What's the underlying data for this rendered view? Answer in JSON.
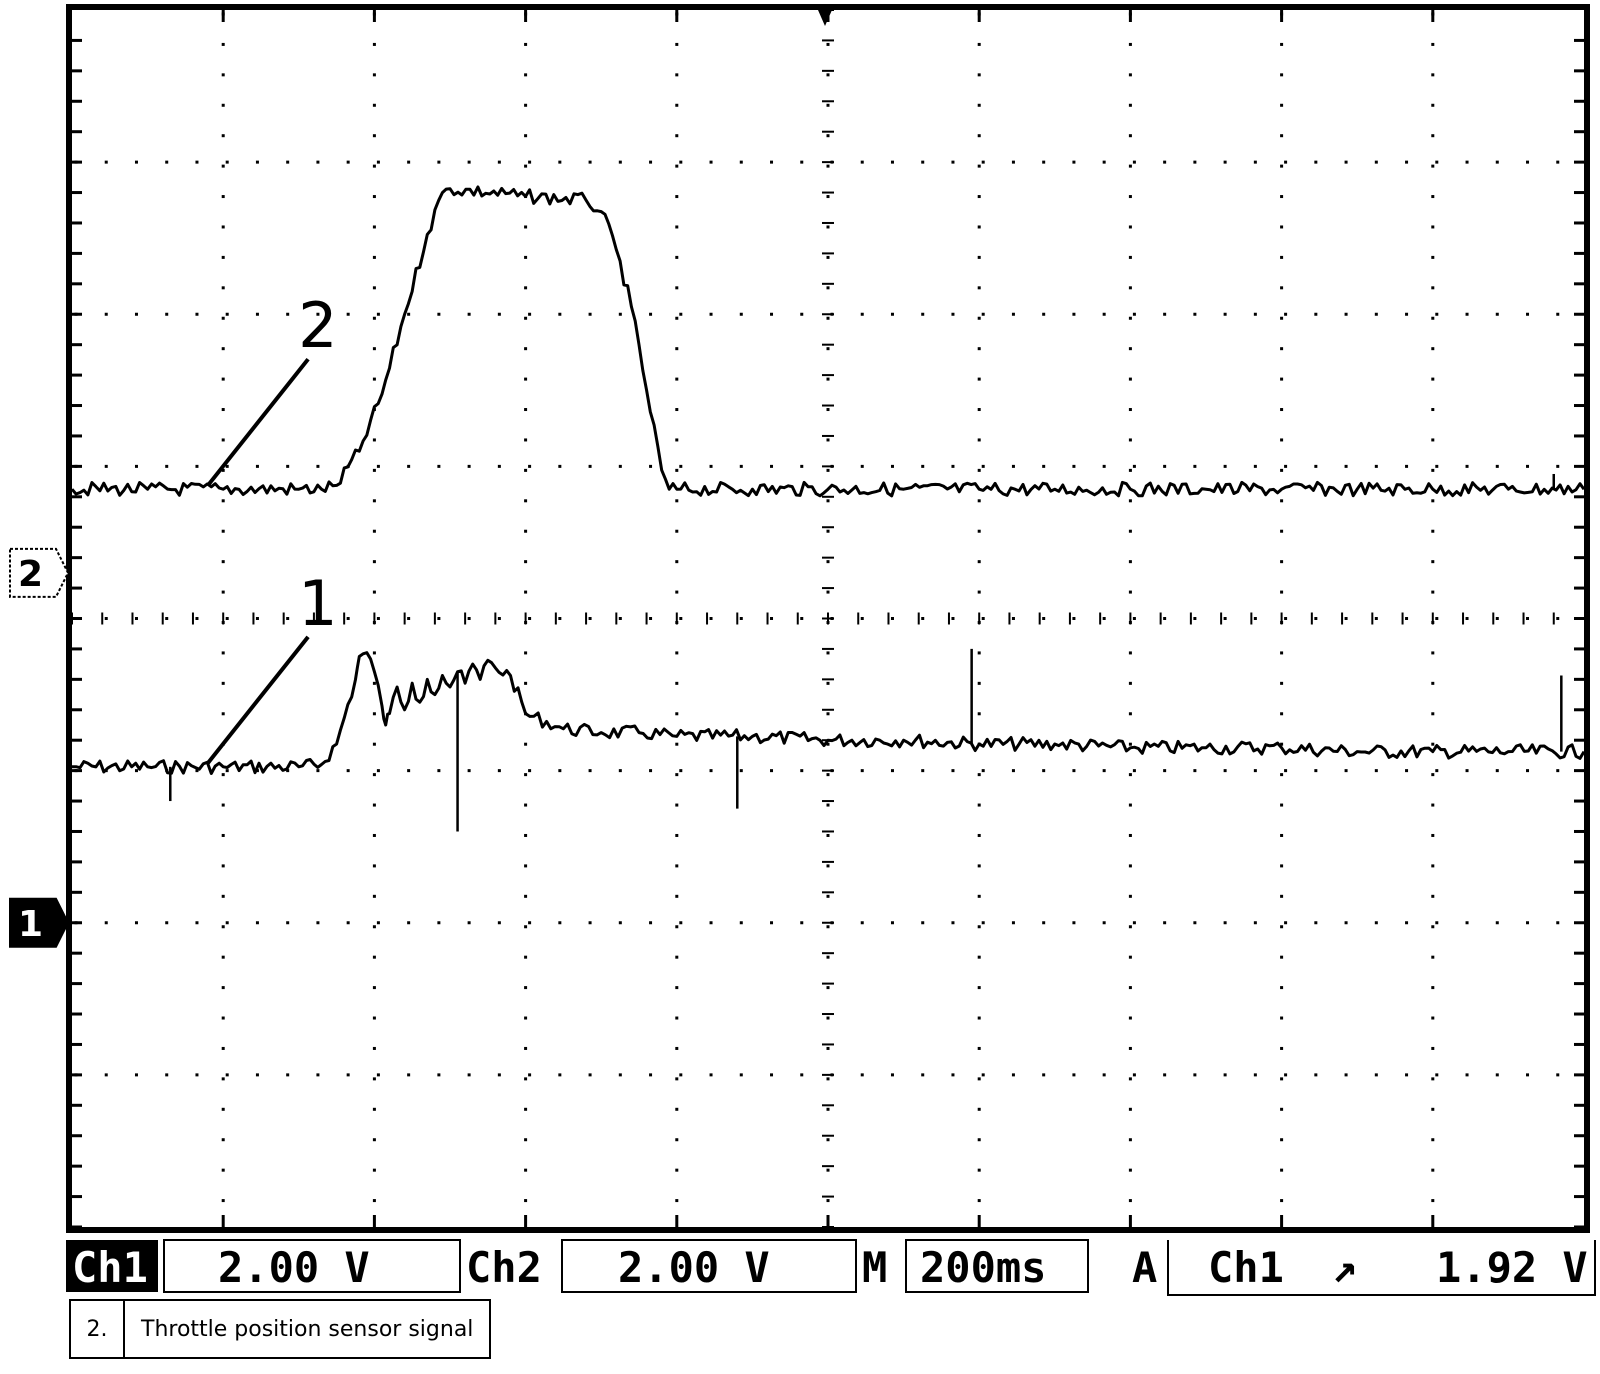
{
  "chart_data": {
    "type": "line",
    "title": "",
    "xlabel": "",
    "ylabel": "",
    "grid": true,
    "x_unit": "ms",
    "xlim": [
      0,
      2000
    ],
    "series": [
      {
        "name": "1",
        "label": "1",
        "volts_per_div": 2.0,
        "x": [
          0,
          100,
          200,
          300,
          330,
          350,
          375,
          380,
          390,
          400,
          410,
          415,
          420,
          430,
          440,
          450,
          460,
          470,
          480,
          490,
          500,
          510,
          520,
          530,
          540,
          550,
          560,
          580,
          600,
          650,
          700,
          750,
          800,
          900,
          1000,
          1100,
          1200,
          1300,
          1400,
          1500,
          1600,
          1700,
          1800,
          1900,
          2000
        ],
        "values": [
          2.05,
          2.05,
          2.05,
          2.05,
          2.08,
          2.35,
          3.2,
          3.5,
          3.55,
          3.3,
          2.85,
          2.6,
          2.75,
          3.1,
          2.8,
          3.15,
          2.9,
          3.2,
          3.0,
          3.25,
          3.1,
          3.3,
          3.15,
          3.4,
          3.2,
          3.45,
          3.35,
          3.25,
          2.75,
          2.55,
          2.5,
          2.5,
          2.45,
          2.45,
          2.4,
          2.4,
          2.35,
          2.35,
          2.3,
          2.3,
          2.3,
          2.25,
          2.25,
          2.25,
          2.25
        ]
      },
      {
        "name": "2",
        "label": "2",
        "volts_per_div": 2.0,
        "x": [
          0,
          100,
          200,
          300,
          330,
          350,
          380,
          410,
          440,
          470,
          490,
          500,
          600,
          680,
          700,
          720,
          740,
          760,
          780,
          790,
          800,
          900,
          1000,
          1100,
          1200,
          1300,
          1400,
          1500,
          1600,
          1700,
          1800,
          1900,
          2000
        ],
        "values": [
          1.1,
          1.1,
          1.1,
          1.1,
          1.1,
          1.15,
          1.6,
          2.35,
          3.4,
          4.45,
          5.0,
          5.05,
          4.95,
          4.9,
          4.75,
          4.25,
          3.5,
          2.4,
          1.35,
          1.1,
          1.1,
          1.1,
          1.1,
          1.1,
          1.1,
          1.1,
          1.1,
          1.1,
          1.1,
          1.1,
          1.1,
          1.1,
          1.1
        ]
      }
    ],
    "spikes": [
      {
        "series": "1",
        "x": 130,
        "value": 1.6
      },
      {
        "series": "1",
        "x": 510,
        "value": 1.2
      },
      {
        "series": "1",
        "x": 880,
        "value": 1.5
      },
      {
        "series": "1",
        "x": 1190,
        "value": 3.6
      },
      {
        "series": "1",
        "x": 1970,
        "value": 3.25
      },
      {
        "series": "2",
        "x": 1960,
        "value": 1.3
      }
    ],
    "ground_markers": [
      {
        "label": "2",
        "value": 0.0
      },
      {
        "label": "1",
        "value": 0.0
      }
    ]
  },
  "status_bar": {
    "ch1_label": "Ch1",
    "ch1_scale": "2.00 V",
    "ch2_label": "Ch2",
    "ch2_scale": "2.00 V",
    "timebase_label": "M",
    "timebase": "200ms",
    "trigger_label": "A",
    "trigger_source": "Ch1",
    "trigger_slope": "↗",
    "trigger_level": "1.92 V"
  },
  "legend": {
    "number": "2.",
    "description": "Throttle position sensor signal"
  }
}
